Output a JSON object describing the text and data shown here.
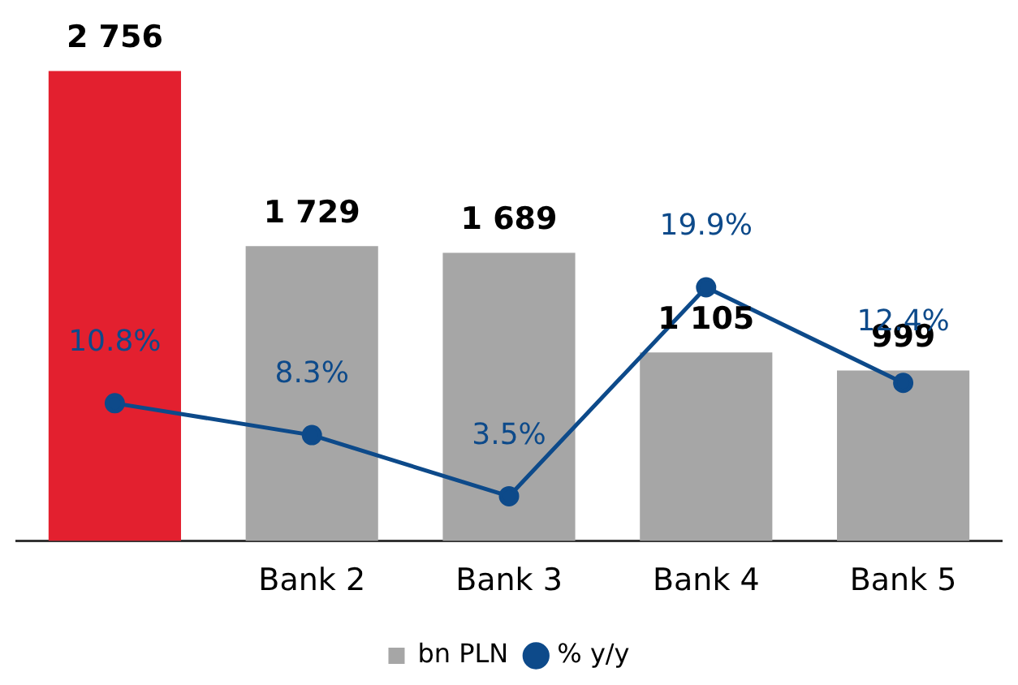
{
  "chart_data": {
    "type": "bar",
    "categories": [
      null,
      "Bank 2",
      "Bank 3",
      "Bank 4",
      "Bank 5"
    ],
    "series": [
      {
        "name": "bn PLN",
        "color": "#a6a6a6",
        "colors": [
          "#e3202f",
          "#a6a6a6",
          "#a6a6a6",
          "#a6a6a6",
          "#a6a6a6"
        ],
        "values": [
          2756,
          1729,
          1689,
          1105,
          999
        ],
        "value_labels": [
          "2 756",
          "1 729",
          "1 689",
          "1 105",
          "999"
        ]
      },
      {
        "name": "% y/y",
        "type": "line",
        "axis": "y2",
        "color": "#0d4a8a",
        "values": [
          10.8,
          8.3,
          3.5,
          19.9,
          12.4
        ],
        "value_labels": [
          "10.8%",
          "8.3%",
          "3.5%",
          "19.9%",
          "12.4%"
        ]
      }
    ],
    "tick_labels": "x",
    "grid": false,
    "legend": "bottom",
    "marker": "circle",
    "line_style": "solid"
  }
}
